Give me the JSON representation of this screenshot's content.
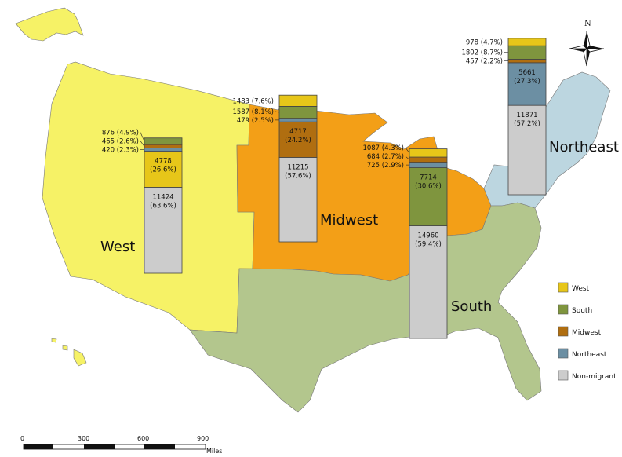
{
  "regions": [
    {
      "key": "west",
      "label": "West",
      "fill": "#f6f266"
    },
    {
      "key": "midwest",
      "label": "Midwest",
      "fill": "#f39f17"
    },
    {
      "key": "south",
      "label": "South",
      "fill": "#b3c68d"
    },
    {
      "key": "northeast",
      "label": "Northeast",
      "fill": "#bcd6e0"
    }
  ],
  "colors": {
    "West": "#e7c619",
    "South": "#7f953e",
    "Midwest": "#b06e10",
    "Northeast": "#6c8fa3",
    "Non-migrant": "#cccccc"
  },
  "legend": [
    {
      "label": "West",
      "color": "#e7c619"
    },
    {
      "label": "South",
      "color": "#7f953e"
    },
    {
      "label": "Midwest",
      "color": "#b06e10"
    },
    {
      "label": "Northeast",
      "color": "#6c8fa3"
    },
    {
      "label": "Non-migrant",
      "color": "#cccccc"
    }
  ],
  "chart_data": {
    "type": "bar",
    "stacked": true,
    "series_order": [
      "Non-migrant",
      "Northeast",
      "Midwest",
      "South",
      "West"
    ],
    "bars": [
      {
        "region": "West",
        "segments": [
          {
            "category": "Non-migrant",
            "value": 11424,
            "label": "11424 (63.6%)",
            "inside": true
          },
          {
            "category": "West",
            "value": 4778,
            "label": "4778 (26.6%)",
            "inside": true
          },
          {
            "category": "Northeast",
            "value": 420,
            "label": "420 (2.3%)",
            "inside": false
          },
          {
            "category": "Midwest",
            "value": 465,
            "label": "465 (2.6%)",
            "inside": false
          },
          {
            "category": "South",
            "value": 876,
            "label": "876 (4.9%)",
            "inside": false
          }
        ]
      },
      {
        "region": "Midwest",
        "segments": [
          {
            "category": "Non-migrant",
            "value": 11215,
            "label": "11215 (57.6%)",
            "inside": true
          },
          {
            "category": "Midwest",
            "value": 4717,
            "label": "4717 (24.2%)",
            "inside": true
          },
          {
            "category": "Northeast",
            "value": 479,
            "label": "479 (2.5%)",
            "inside": false
          },
          {
            "category": "South",
            "value": 1587,
            "label": "1587 (8.1%)",
            "inside": false
          },
          {
            "category": "West",
            "value": 1483,
            "label": "1483 (7.6%)",
            "inside": false
          }
        ]
      },
      {
        "region": "South",
        "segments": [
          {
            "category": "Non-migrant",
            "value": 14960,
            "label": "14960 (59.4%)",
            "inside": true
          },
          {
            "category": "South",
            "value": 7714,
            "label": "7714 (30.6%)",
            "inside": true
          },
          {
            "category": "Northeast",
            "value": 725,
            "label": "725 (2.9%)",
            "inside": false
          },
          {
            "category": "Midwest",
            "value": 684,
            "label": "684 (2.7%)",
            "inside": false
          },
          {
            "category": "West",
            "value": 1087,
            "label": "1087 (4.3%)",
            "inside": false
          }
        ]
      },
      {
        "region": "Northeast",
        "segments": [
          {
            "category": "Non-migrant",
            "value": 11871,
            "label": "11871 (57.2%)",
            "inside": true
          },
          {
            "category": "Northeast",
            "value": 5661,
            "label": "5661 (27.3%)",
            "inside": true
          },
          {
            "category": "Midwest",
            "value": 457,
            "label": "457 (2.2%)",
            "inside": false
          },
          {
            "category": "South",
            "value": 1802,
            "label": "1802 (8.7%)",
            "inside": false
          },
          {
            "category": "West",
            "value": 978,
            "label": "978 (4.7%)",
            "inside": false
          }
        ]
      }
    ]
  },
  "north_arrow": {
    "label": "N"
  },
  "scale_bar": {
    "ticks": [
      "0",
      "300",
      "600",
      "900"
    ],
    "unit": "Miles"
  }
}
